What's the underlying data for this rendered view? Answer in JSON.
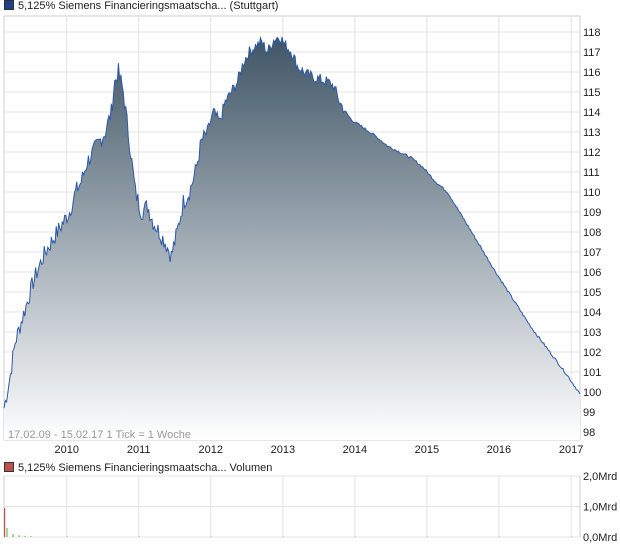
{
  "legend": {
    "price_label": "5,125% Siemens Financieringsmaatscha... (Stuttgart)",
    "price_color": "#1f3f8f",
    "volume_label": "5,125% Siemens Financieringsmaatscha... Volumen",
    "volume_color": "#c0504d"
  },
  "chart_data": [
    {
      "type": "area",
      "note": "17.02.09 - 15.02.17   1 Tick = 1 Woche",
      "x_tick_labels": [
        "2010",
        "2011",
        "2012",
        "2013",
        "2014",
        "2015",
        "2016",
        "2017"
      ],
      "y_tick_labels": [
        "98",
        "99",
        "100",
        "101",
        "102",
        "103",
        "104",
        "105",
        "106",
        "107",
        "108",
        "109",
        "110",
        "111",
        "112",
        "113",
        "114",
        "115",
        "116",
        "117",
        "118"
      ],
      "ylim": [
        97.6,
        118.8
      ],
      "xlim": [
        "2009-02-17",
        "2017-02-15"
      ],
      "grid": true,
      "line_color": "#2d5aa8",
      "fill_top_color": "#3f5566",
      "fill_bottom_color": "#ffffff",
      "series": [
        {
          "x": [
            "2009-02-17",
            "2009-03-15",
            "2009-04-15",
            "2009-05-15",
            "2009-06-15",
            "2009-07-15",
            "2009-08-15",
            "2009-09-15",
            "2009-10-15",
            "2009-11-15",
            "2009-12-15",
            "2010-01-15",
            "2010-02-15",
            "2010-03-15",
            "2010-04-15",
            "2010-05-15",
            "2010-06-15",
            "2010-07-15",
            "2010-08-15",
            "2010-09-01",
            "2010-09-20",
            "2010-10-15",
            "2010-11-15",
            "2010-12-15",
            "2011-01-15",
            "2011-02-15",
            "2011-03-15",
            "2011-04-15",
            "2011-05-15",
            "2011-06-15",
            "2011-07-15",
            "2011-08-15",
            "2011-09-15",
            "2011-10-15",
            "2011-11-15",
            "2011-12-15",
            "2012-01-15",
            "2012-02-15",
            "2012-03-15",
            "2012-04-15",
            "2012-05-15",
            "2012-06-15",
            "2012-07-15",
            "2012-08-15",
            "2012-09-15",
            "2012-10-15",
            "2012-11-15",
            "2012-12-15",
            "2013-01-15",
            "2013-02-15",
            "2013-03-15",
            "2013-04-15",
            "2013-05-15",
            "2013-06-15",
            "2013-07-15",
            "2013-08-15",
            "2013-09-15",
            "2013-10-15",
            "2013-11-15",
            "2013-12-15",
            "2014-02-15",
            "2014-04-15",
            "2014-06-15",
            "2014-08-15",
            "2014-10-15",
            "2014-12-15",
            "2015-02-15",
            "2015-04-15",
            "2015-06-15",
            "2015-09-15",
            "2015-12-15",
            "2016-03-15",
            "2016-06-15",
            "2016-09-15",
            "2016-12-15",
            "2017-02-15"
          ],
          "values": [
            99.2,
            100.5,
            102.5,
            103.5,
            104.5,
            105.5,
            106.3,
            107.0,
            107.5,
            108.0,
            108.5,
            109.0,
            110.0,
            110.5,
            111.5,
            112.0,
            112.5,
            113.0,
            114.0,
            115.5,
            116.0,
            115.0,
            112.5,
            110.0,
            109.0,
            109.3,
            108.5,
            108.0,
            107.5,
            106.8,
            108.0,
            109.5,
            110.0,
            111.0,
            112.5,
            113.0,
            114.0,
            113.5,
            114.5,
            115.0,
            115.5,
            116.5,
            117.0,
            117.3,
            117.5,
            117.0,
            117.6,
            117.8,
            117.3,
            117.0,
            116.3,
            116.0,
            115.8,
            115.7,
            115.6,
            115.5,
            115.3,
            114.5,
            114.0,
            113.6,
            113.2,
            112.8,
            112.3,
            112.0,
            111.7,
            111.2,
            110.5,
            110.0,
            109.0,
            107.5,
            106.0,
            104.6,
            103.2,
            102.0,
            100.8,
            99.9
          ]
        }
      ]
    },
    {
      "type": "bar",
      "title": "Volumen",
      "y_tick_labels": [
        "2,0Mrd",
        "1,0Mrd",
        "0,0Mrd"
      ],
      "ylim": [
        0,
        2.0
      ],
      "grid": true,
      "bar_color": "#6fbf4a",
      "first_bar_color": "#c0504d",
      "x": [
        "2009-02-17",
        "2009-03-01",
        "2009-04-01",
        "2009-05-01",
        "2009-06-01",
        "2009-07-01",
        "2010-01-01",
        "2011-01-01",
        "2012-01-01",
        "2013-01-01",
        "2014-01-01",
        "2015-01-01",
        "2016-01-01",
        "2017-01-01"
      ],
      "values": [
        0.95,
        0.3,
        0.1,
        0.06,
        0.04,
        0.03,
        0.02,
        0.02,
        0.01,
        0.01,
        0.01,
        0.01,
        0.01,
        0.01
      ]
    }
  ]
}
